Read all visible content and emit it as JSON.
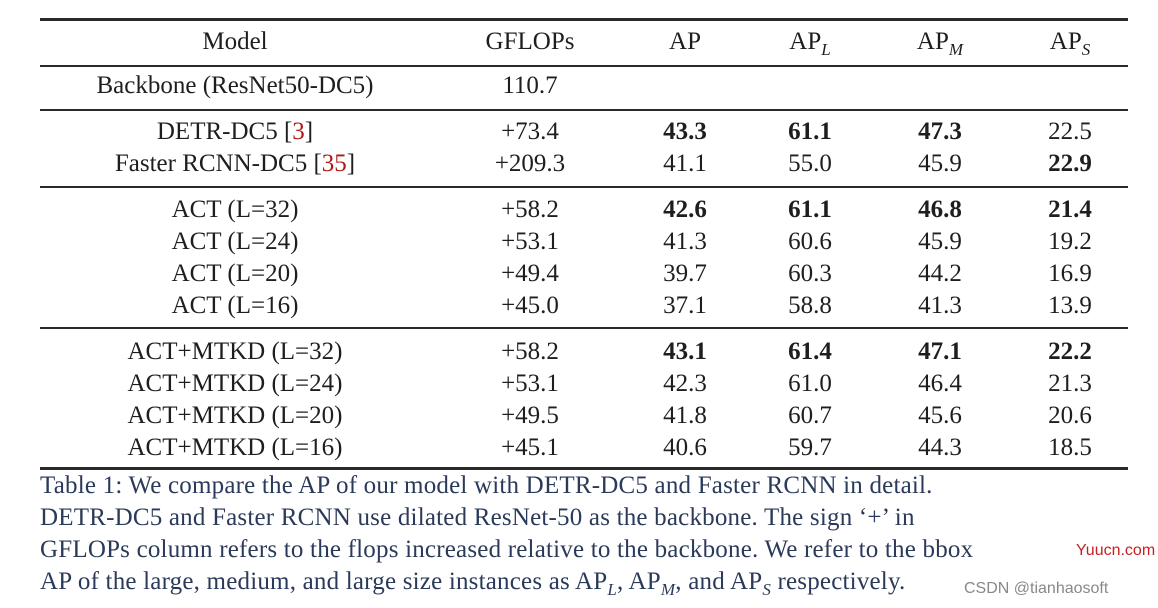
{
  "table": {
    "header": {
      "model": "Model",
      "gflops": "GFLOPs",
      "ap": "AP",
      "apl_base": "AP",
      "apl_sub": "L",
      "apm_base": "AP",
      "apm_sub": "M",
      "aps_base": "AP",
      "aps_sub": "S"
    },
    "rows": [
      {
        "model": "Backbone (ResNet50-DC5)",
        "ref": "",
        "gflops": "110.7",
        "ap": "",
        "apl": "",
        "apm": "",
        "aps": ""
      },
      {
        "model": "DETR-DC5 ",
        "ref": "3",
        "gflops": "+73.4",
        "ap": "43.3",
        "apl": "61.1",
        "apm": "47.3",
        "aps": "22.5"
      },
      {
        "model": "Faster RCNN-DC5 ",
        "ref": "35",
        "gflops": "+209.3",
        "ap": "41.1",
        "apl": "55.0",
        "apm": "45.9",
        "aps": "22.9"
      },
      {
        "model": "ACT (L=32)",
        "ref": "",
        "gflops": "+58.2",
        "ap": "42.6",
        "apl": "61.1",
        "apm": "46.8",
        "aps": "21.4"
      },
      {
        "model": "ACT (L=24)",
        "ref": "",
        "gflops": "+53.1",
        "ap": "41.3",
        "apl": "60.6",
        "apm": "45.9",
        "aps": "19.2"
      },
      {
        "model": "ACT (L=20)",
        "ref": "",
        "gflops": "+49.4",
        "ap": "39.7",
        "apl": "60.3",
        "apm": "44.2",
        "aps": "16.9"
      },
      {
        "model": "ACT (L=16)",
        "ref": "",
        "gflops": "+45.0",
        "ap": "37.1",
        "apl": "58.8",
        "apm": "41.3",
        "aps": "13.9"
      },
      {
        "model": "ACT+MTKD (L=32)",
        "ref": "",
        "gflops": "+58.2",
        "ap": "43.1",
        "apl": "61.4",
        "apm": "47.1",
        "aps": "22.2"
      },
      {
        "model": "ACT+MTKD (L=24)",
        "ref": "",
        "gflops": "+53.1",
        "ap": "42.3",
        "apl": "61.0",
        "apm": "46.4",
        "aps": "21.3"
      },
      {
        "model": "ACT+MTKD (L=20)",
        "ref": "",
        "gflops": "+49.5",
        "ap": "41.8",
        "apl": "60.7",
        "apm": "45.6",
        "aps": "20.6"
      },
      {
        "model": "ACT+MTKD (L=16)",
        "ref": "",
        "gflops": "+45.1",
        "ap": "40.6",
        "apl": "59.7",
        "apm": "44.3",
        "aps": "18.5"
      }
    ]
  },
  "caption": {
    "line1": "Table 1: We compare the AP of our model with DETR-DC5 and Faster RCNN in detail.",
    "line2": "DETR-DC5 and Faster RCNN use dilated ResNet-50 as the backbone. The sign ‘+’ in",
    "line3": "GFLOPs column refers to the flops increased relative to the backbone. We refer to the bbox",
    "line4_a": "AP of the large, medium, and large size instances as AP",
    "line4_sub_l": "L",
    "line4_b": ", AP",
    "line4_sub_m": "M",
    "line4_c": ", and AP",
    "line4_sub_s": "S",
    "line4_d": " respectively."
  },
  "watermark": {
    "red": "Yuucn.com",
    "gray": "CSDN @tianhaosoft"
  }
}
